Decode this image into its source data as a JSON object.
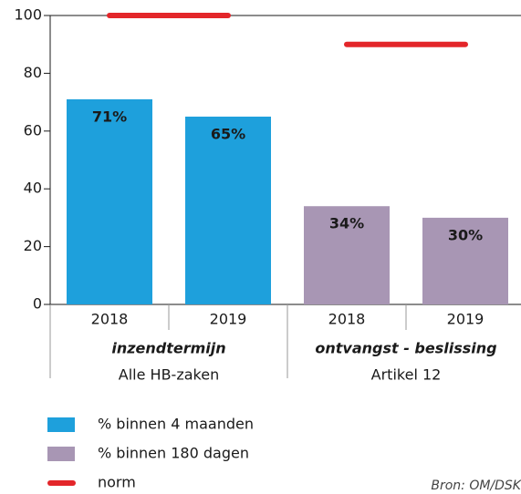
{
  "chart_data": {
    "type": "bar",
    "categories": [
      "2018",
      "2019",
      "2018",
      "2019"
    ],
    "groups": [
      {
        "label": "inzendtermijn",
        "sublabel": "Alle HB-zaken"
      },
      {
        "label": "ontvangst - beslissing",
        "sublabel": "Artikel 12"
      }
    ],
    "series": [
      {
        "name": "% binnen 4 maanden",
        "color": "#1ea0dc",
        "values": [
          71,
          65,
          null,
          null
        ],
        "value_labels": [
          "71%",
          "65%",
          null,
          null
        ]
      },
      {
        "name": "% binnen 180 dagen",
        "color": "#a896b4",
        "values": [
          null,
          null,
          34,
          30
        ],
        "value_labels": [
          null,
          null,
          "34%",
          "30%"
        ]
      },
      {
        "name": "norm",
        "color": "#e3262a",
        "type": "line",
        "values": [
          100,
          100,
          90,
          90
        ]
      }
    ],
    "ylim": [
      0,
      100
    ],
    "yticks": [
      0,
      20,
      40,
      60,
      80,
      100
    ],
    "source": "Bron: OM/DSK"
  }
}
